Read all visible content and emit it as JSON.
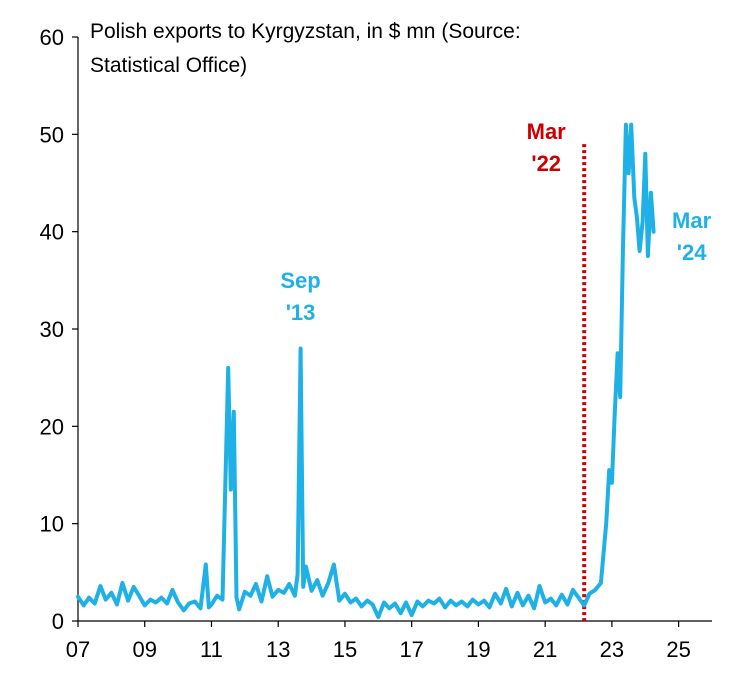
{
  "chart_data": {
    "type": "line",
    "title_lines": [
      "Polish exports to Kyrgyzstan, in $ mn (Source:",
      "Statistical Office)"
    ],
    "xlabel": "",
    "ylabel": "",
    "xlim": [
      2007.0,
      2026.0
    ],
    "ylim": [
      0,
      60
    ],
    "yticks": [
      0,
      10,
      20,
      30,
      40,
      50,
      60
    ],
    "xticks": [
      {
        "label": "07",
        "value": 2007
      },
      {
        "label": "09",
        "value": 2009
      },
      {
        "label": "11",
        "value": 2011
      },
      {
        "label": "13",
        "value": 2013
      },
      {
        "label": "15",
        "value": 2015
      },
      {
        "label": "17",
        "value": 2017
      },
      {
        "label": "19",
        "value": 2019
      },
      {
        "label": "21",
        "value": 2021
      },
      {
        "label": "23",
        "value": 2023
      },
      {
        "label": "25",
        "value": 2025
      }
    ],
    "grid": false,
    "series": [
      {
        "color": "#1fb1e6",
        "points": [
          [
            2007.0,
            2.5
          ],
          [
            2007.17,
            1.6
          ],
          [
            2007.33,
            2.4
          ],
          [
            2007.5,
            1.8
          ],
          [
            2007.67,
            3.6
          ],
          [
            2007.83,
            2.2
          ],
          [
            2008.0,
            2.9
          ],
          [
            2008.17,
            1.7
          ],
          [
            2008.33,
            3.9
          ],
          [
            2008.5,
            2.1
          ],
          [
            2008.67,
            3.5
          ],
          [
            2008.83,
            2.6
          ],
          [
            2009.0,
            1.6
          ],
          [
            2009.17,
            2.2
          ],
          [
            2009.33,
            1.9
          ],
          [
            2009.5,
            2.4
          ],
          [
            2009.67,
            1.8
          ],
          [
            2009.83,
            3.2
          ],
          [
            2010.0,
            1.9
          ],
          [
            2010.17,
            1.1
          ],
          [
            2010.33,
            1.8
          ],
          [
            2010.5,
            2.0
          ],
          [
            2010.67,
            1.3
          ],
          [
            2010.83,
            5.8
          ],
          [
            2010.92,
            1.4
          ],
          [
            2011.0,
            1.7
          ],
          [
            2011.17,
            2.6
          ],
          [
            2011.33,
            2.2
          ],
          [
            2011.5,
            26.0
          ],
          [
            2011.58,
            13.5
          ],
          [
            2011.67,
            21.5
          ],
          [
            2011.75,
            2.4
          ],
          [
            2011.83,
            1.2
          ],
          [
            2012.0,
            3.0
          ],
          [
            2012.17,
            2.6
          ],
          [
            2012.33,
            3.8
          ],
          [
            2012.5,
            2.0
          ],
          [
            2012.67,
            4.6
          ],
          [
            2012.83,
            2.5
          ],
          [
            2013.0,
            3.2
          ],
          [
            2013.17,
            2.9
          ],
          [
            2013.33,
            3.8
          ],
          [
            2013.5,
            2.6
          ],
          [
            2013.58,
            4.8
          ],
          [
            2013.67,
            28.0
          ],
          [
            2013.75,
            3.5
          ],
          [
            2013.83,
            5.6
          ],
          [
            2014.0,
            3.1
          ],
          [
            2014.17,
            4.2
          ],
          [
            2014.33,
            2.6
          ],
          [
            2014.5,
            3.9
          ],
          [
            2014.67,
            5.8
          ],
          [
            2014.83,
            2.1
          ],
          [
            2015.0,
            2.8
          ],
          [
            2015.17,
            1.9
          ],
          [
            2015.33,
            2.3
          ],
          [
            2015.5,
            1.5
          ],
          [
            2015.67,
            2.1
          ],
          [
            2015.83,
            1.7
          ],
          [
            2016.0,
            0.4
          ],
          [
            2016.17,
            1.9
          ],
          [
            2016.33,
            1.3
          ],
          [
            2016.5,
            1.8
          ],
          [
            2016.67,
            0.8
          ],
          [
            2016.83,
            1.9
          ],
          [
            2017.0,
            0.6
          ],
          [
            2017.17,
            2.0
          ],
          [
            2017.33,
            1.5
          ],
          [
            2017.5,
            2.1
          ],
          [
            2017.67,
            1.8
          ],
          [
            2017.83,
            2.3
          ],
          [
            2018.0,
            1.4
          ],
          [
            2018.17,
            2.1
          ],
          [
            2018.33,
            1.6
          ],
          [
            2018.5,
            2.0
          ],
          [
            2018.67,
            1.5
          ],
          [
            2018.83,
            2.2
          ],
          [
            2019.0,
            1.7
          ],
          [
            2019.17,
            2.1
          ],
          [
            2019.33,
            1.4
          ],
          [
            2019.5,
            2.8
          ],
          [
            2019.67,
            1.8
          ],
          [
            2019.83,
            3.3
          ],
          [
            2020.0,
            1.5
          ],
          [
            2020.17,
            2.9
          ],
          [
            2020.33,
            1.6
          ],
          [
            2020.5,
            2.6
          ],
          [
            2020.67,
            1.3
          ],
          [
            2020.83,
            3.6
          ],
          [
            2021.0,
            1.9
          ],
          [
            2021.17,
            2.3
          ],
          [
            2021.33,
            1.6
          ],
          [
            2021.5,
            2.7
          ],
          [
            2021.67,
            1.7
          ],
          [
            2021.83,
            3.2
          ],
          [
            2022.0,
            2.4
          ],
          [
            2022.17,
            1.6
          ],
          [
            2022.33,
            2.8
          ],
          [
            2022.5,
            3.2
          ],
          [
            2022.67,
            3.9
          ],
          [
            2022.83,
            10.0
          ],
          [
            2022.92,
            15.5
          ],
          [
            2023.0,
            14.2
          ],
          [
            2023.08,
            21.0
          ],
          [
            2023.17,
            27.5
          ],
          [
            2023.25,
            23.0
          ],
          [
            2023.33,
            38.0
          ],
          [
            2023.42,
            51.0
          ],
          [
            2023.5,
            46.0
          ],
          [
            2023.58,
            51.0
          ],
          [
            2023.67,
            43.5
          ],
          [
            2023.75,
            41.5
          ],
          [
            2023.83,
            38.0
          ],
          [
            2023.92,
            41.0
          ],
          [
            2024.0,
            48.0
          ],
          [
            2024.08,
            37.5
          ],
          [
            2024.17,
            44.0
          ],
          [
            2024.25,
            40.0
          ]
        ]
      }
    ],
    "annotations": [
      {
        "lines": [
          "Sep",
          "'13"
        ],
        "color": "#1fb1e6",
        "x": 2013.67
      },
      {
        "lines": [
          "Mar",
          "'22"
        ],
        "color": "#cc0000",
        "x": 2022.17
      },
      {
        "lines": [
          "Mar",
          "'24"
        ],
        "color": "#1fb1e6",
        "x": 2024.25
      }
    ],
    "vline": {
      "x": 2022.17,
      "y_top": 49,
      "color": "#cc0000",
      "style": "dotted"
    }
  }
}
